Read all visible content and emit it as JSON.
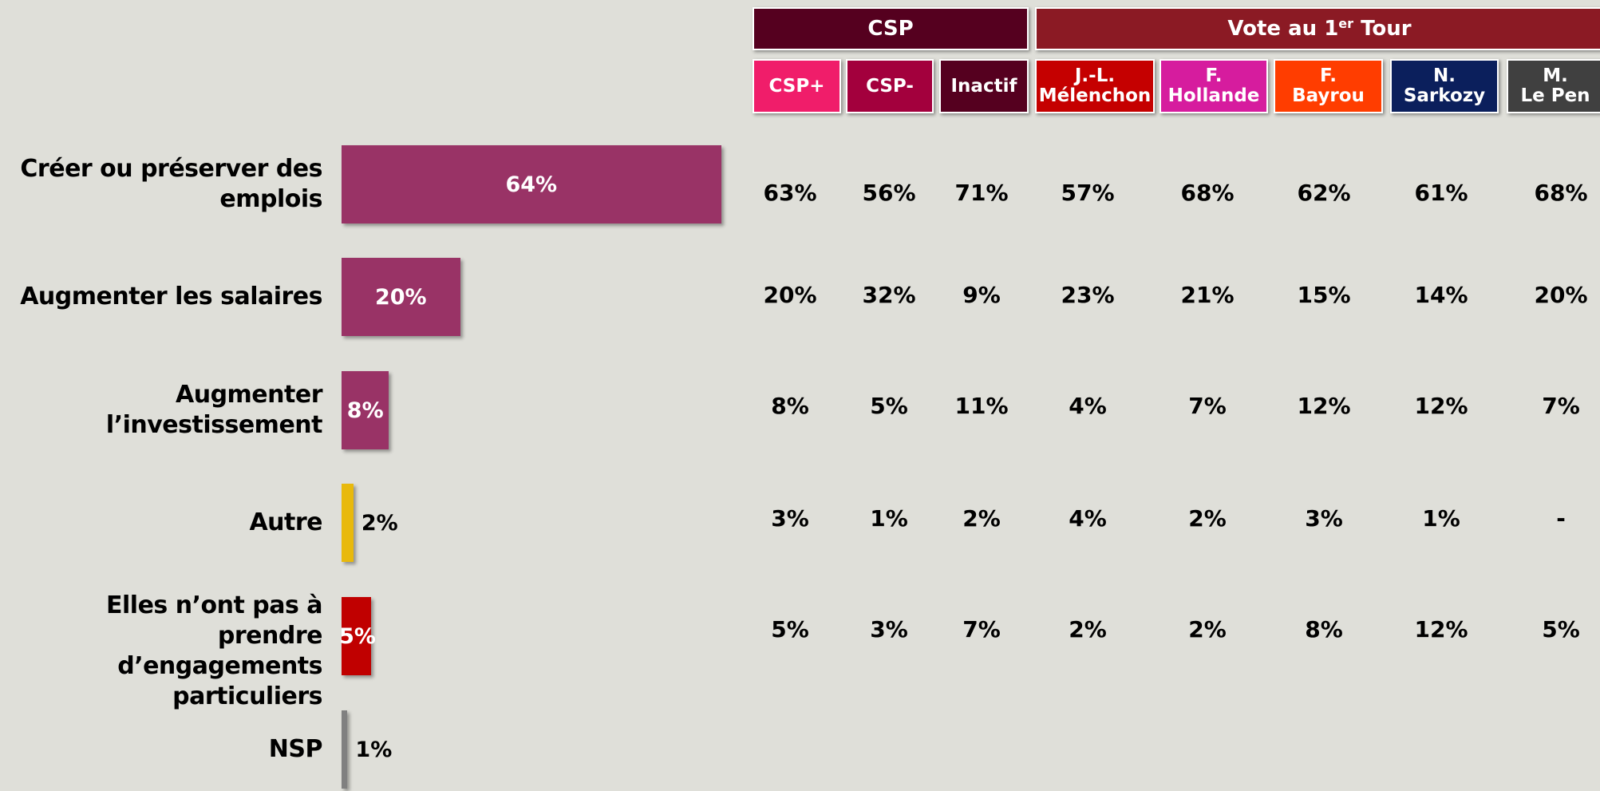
{
  "chart_data": {
    "type": "bar",
    "orientation": "horizontal",
    "categories": [
      [
        "Créer ou préserver des",
        "emplois"
      ],
      [
        "Augmenter les salaires"
      ],
      [
        "Augmenter",
        "l’investissement"
      ],
      [
        "Autre"
      ],
      [
        "Elles n’ont pas à prendre",
        "d’engagements",
        "particuliers"
      ],
      [
        "NSP"
      ]
    ],
    "values": [
      64,
      20,
      8,
      2,
      5,
      1
    ],
    "value_labels": [
      "64%",
      "20%",
      "8%",
      "2%",
      "5%",
      "1%"
    ],
    "colors": [
      "#993366",
      "#993366",
      "#993366",
      "#e8b90c",
      "#c00000",
      "#808080"
    ]
  },
  "table": {
    "groups": [
      {
        "label": [
          "CSP"
        ],
        "span": 3,
        "color": "#55001f"
      },
      {
        "label": [
          "Vote au 1",
          "er",
          " Tour"
        ],
        "span": 5,
        "color": "#8b1a24"
      }
    ],
    "columns": [
      {
        "label": [
          "CSP+"
        ],
        "color": "#f01d6a"
      },
      {
        "label": [
          "CSP-"
        ],
        "color": "#a3003d"
      },
      {
        "label": [
          "Inactif"
        ],
        "color": "#55001f"
      },
      {
        "label": [
          "J.-L.",
          "Mélenchon"
        ],
        "color": "#c50000"
      },
      {
        "label": [
          "F.",
          "Hollande"
        ],
        "color": "#d61c9e"
      },
      {
        "label": [
          "F.",
          "Bayrou"
        ],
        "color": "#ff3d00"
      },
      {
        "label": [
          "N.",
          "Sarkozy"
        ],
        "color": "#0b1f5c"
      },
      {
        "label": [
          "M.",
          "Le Pen"
        ],
        "color": "#404040"
      }
    ],
    "rows": [
      [
        "63%",
        "56%",
        "71%",
        "57%",
        "68%",
        "62%",
        "61%",
        "68%"
      ],
      [
        "20%",
        "32%",
        "9%",
        "23%",
        "21%",
        "15%",
        "14%",
        "20%"
      ],
      [
        "8%",
        "5%",
        "11%",
        "4%",
        "7%",
        "12%",
        "12%",
        "7%"
      ],
      [
        "3%",
        "1%",
        "2%",
        "4%",
        "2%",
        "3%",
        "1%",
        "-"
      ],
      [
        "5%",
        "3%",
        "7%",
        "2%",
        "2%",
        "8%",
        "12%",
        "5%"
      ]
    ]
  }
}
